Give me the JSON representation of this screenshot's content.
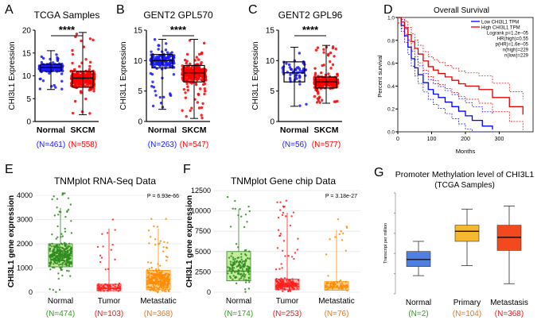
{
  "colors": {
    "normal_blue": "#1a1aff",
    "skcm_red": "#ff0000",
    "km_low": "#0000ff",
    "km_high": "#e00000",
    "tnm_normal": "#2e8b1e",
    "tnm_tumor": "#ff2020",
    "tnm_meta": "#ff8c00",
    "tnm_normal_box": "#9be05a",
    "tnm_tumor_box": "#ff8080",
    "tnm_meta_box": "#ffb347",
    "meth_normal": "#4f7fe0",
    "meth_primary": "#f5b82e",
    "meth_meta": "#f24a1e",
    "n_green": "#3a9a2a",
    "n_red": "#e02020",
    "n_orange": "#e07820"
  },
  "chart_data": [
    {
      "id": "A",
      "type": "box",
      "letter": "A",
      "title": "TCGA Samples",
      "ylabel": "CHI3L1 Expression",
      "ylim": [
        0,
        20
      ],
      "yticks": [
        "0",
        "5",
        "10",
        "15",
        "20"
      ],
      "significance": "****",
      "groups": [
        {
          "name": "Normal",
          "n_label": "(N=461)",
          "min": 7,
          "q1": 11,
          "median": 11.8,
          "q3": 12.5,
          "max": 15.5
        },
        {
          "name": "SKCM",
          "n_label": "(N=558)",
          "min": 1.5,
          "q1": 7.5,
          "median": 9.5,
          "q3": 11,
          "max": 19.5
        }
      ]
    },
    {
      "id": "B",
      "type": "box",
      "letter": "B",
      "title": "GENT2 GPL570",
      "ylabel": "CHI3L1 Expression",
      "ylim": [
        0,
        15
      ],
      "yticks": [
        "0",
        "5",
        "10",
        "15"
      ],
      "significance": "****",
      "groups": [
        {
          "name": "Normal",
          "n_label": "(N=263)",
          "min": 2,
          "q1": 8.8,
          "median": 10,
          "q3": 11,
          "max": 13.5
        },
        {
          "name": "SKCM",
          "n_label": "(N=547)",
          "min": 0.5,
          "q1": 6.5,
          "median": 8,
          "q3": 9.2,
          "max": 13.5
        }
      ]
    },
    {
      "id": "C",
      "type": "box",
      "letter": "C",
      "title": "GENT2 GPL96",
      "ylabel": "CHI3L1 Expression",
      "ylim": [
        0,
        15
      ],
      "yticks": [
        "0",
        "5",
        "10",
        "15"
      ],
      "significance": "****",
      "groups": [
        {
          "name": "Normal",
          "n_label": "(N=56)",
          "min": 2.5,
          "q1": 6.5,
          "median": 8,
          "q3": 9.8,
          "max": 12.2
        },
        {
          "name": "SKCM",
          "n_label": "(N=577)",
          "min": 3,
          "q1": 5.5,
          "median": 6.5,
          "q3": 7.3,
          "max": 12.5
        }
      ]
    },
    {
      "id": "D",
      "type": "line",
      "letter": "D",
      "title": "Overall Survival",
      "xlabel": "Months",
      "ylabel": "Percent survival",
      "xlim": [
        0,
        400
      ],
      "ylim": [
        0,
        1
      ],
      "xticks": [
        "0",
        "100",
        "200",
        "300"
      ],
      "yticks": [
        "0.0",
        "0.2",
        "0.4",
        "0.6",
        "0.8",
        "1.0"
      ],
      "legend": [
        "Low CHI3L1 TPM",
        "High CHI3L1 TPM"
      ],
      "stats": [
        "Logrank p=1.2e−05",
        "HR(high)=0.55",
        "p(HR)=1.6e−05",
        "n(high)=229",
        "n(low)=229"
      ],
      "series": [
        {
          "name": "Low CHI3L1 TPM",
          "x": [
            0,
            10,
            20,
            30,
            40,
            50,
            60,
            75,
            90,
            105,
            120,
            140,
            160,
            180,
            200,
            220,
            250,
            280
          ],
          "y": [
            1.0,
            0.93,
            0.84,
            0.74,
            0.64,
            0.56,
            0.5,
            0.43,
            0.37,
            0.33,
            0.3,
            0.26,
            0.22,
            0.18,
            0.14,
            0.1,
            0.05,
            0.02
          ]
        },
        {
          "name": "High CHI3L1 TPM",
          "x": [
            0,
            10,
            20,
            30,
            40,
            50,
            60,
            75,
            90,
            105,
            120,
            140,
            160,
            180,
            200,
            240,
            280,
            330,
            370
          ],
          "y": [
            1.0,
            0.96,
            0.91,
            0.85,
            0.79,
            0.73,
            0.68,
            0.62,
            0.57,
            0.54,
            0.51,
            0.48,
            0.45,
            0.42,
            0.4,
            0.37,
            0.3,
            0.22,
            0.15
          ]
        }
      ]
    },
    {
      "id": "E",
      "type": "box",
      "letter": "E",
      "title": "TNMplot RNA-Seq Data",
      "ylabel": "CHI3L1 gene expression",
      "ylim": [
        0,
        4200
      ],
      "yticks": [
        "0",
        "1000",
        "2000",
        "3000",
        "4000"
      ],
      "pvalue": "P = 6.93e-66",
      "groups": [
        {
          "name": "Normal",
          "n_label": "(N=474)",
          "min": 0,
          "q1": 1050,
          "median": 1500,
          "q3": 2000,
          "max": 4100
        },
        {
          "name": "Tumor",
          "n_label": "(N=103)",
          "min": 0,
          "q1": 60,
          "median": 150,
          "q3": 330,
          "max": 3100
        },
        {
          "name": "Metastatic",
          "n_label": "(N=368)",
          "min": 0,
          "q1": 100,
          "median": 350,
          "q3": 900,
          "max": 3100
        }
      ]
    },
    {
      "id": "F",
      "type": "box",
      "letter": "F",
      "title": "TNMplot Gene chip Data",
      "ylabel": "CHI3L1 gene expression",
      "ylim": [
        0,
        12500
      ],
      "yticks": [
        "0",
        "2500",
        "5000",
        "7500",
        "10000",
        "12500"
      ],
      "pvalue": "P = 3.18e-27",
      "groups": [
        {
          "name": "Normal",
          "n_label": "(N=174)",
          "min": 0,
          "q1": 1400,
          "median": 2600,
          "q3": 5000,
          "max": 12000
        },
        {
          "name": "Tumor",
          "n_label": "(N=253)",
          "min": 0,
          "q1": 300,
          "median": 700,
          "q3": 1600,
          "max": 11500
        },
        {
          "name": "Metastatic",
          "n_label": "(N=76)",
          "min": 0,
          "q1": 250,
          "median": 600,
          "q3": 1300,
          "max": 9000
        }
      ]
    },
    {
      "id": "G",
      "type": "box",
      "letter": "G",
      "title": "Promoter Methylation level of CHI3L1",
      "subtitle": "(TCGA Samples)",
      "ylabel": "Transcript per million",
      "ylim": [
        0,
        1
      ],
      "groups": [
        {
          "name": "Normal",
          "n_label": "(N=2)",
          "min": 0.18,
          "q1": 0.27,
          "median": 0.34,
          "q3": 0.42,
          "max": 0.52
        },
        {
          "name": "Primary",
          "n_label": "(N=104)",
          "min": 0.28,
          "q1": 0.52,
          "median": 0.62,
          "q3": 0.68,
          "max": 0.84
        },
        {
          "name": "Metastasis",
          "n_label": "(N=368)",
          "min": 0.1,
          "q1": 0.43,
          "median": 0.56,
          "q3": 0.68,
          "max": 0.87
        }
      ]
    }
  ]
}
